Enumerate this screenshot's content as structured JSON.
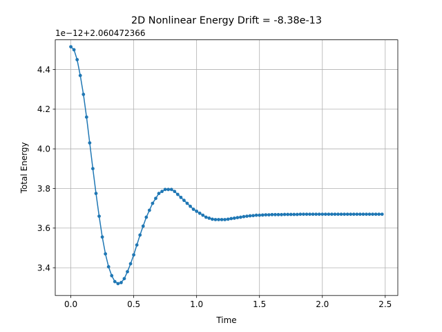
{
  "chart_data": {
    "type": "line",
    "title": "2D Nonlinear Energy Drift = -8.38e-13",
    "xlabel": "Time",
    "ylabel": "Total Energy",
    "offset_text": "1e−12+2.060472366",
    "xlim": [
      -0.124,
      2.6
    ],
    "ylim": [
      3.26,
      4.55
    ],
    "x_ticks": [
      0.0,
      0.5,
      1.0,
      1.5,
      2.0,
      2.5
    ],
    "x_tick_labels": [
      "0.0",
      "0.5",
      "1.0",
      "1.5",
      "2.0",
      "2.5"
    ],
    "y_ticks": [
      3.4,
      3.6,
      3.8,
      4.0,
      4.2,
      4.4
    ],
    "y_tick_labels": [
      "3.4",
      "3.6",
      "3.8",
      "4.0",
      "4.2",
      "4.4"
    ],
    "grid": true,
    "color": "#1f77b4",
    "marker": "circle",
    "series": [
      {
        "x": [
          0.0,
          0.025,
          0.05,
          0.075,
          0.1,
          0.125,
          0.15,
          0.175,
          0.2,
          0.225,
          0.25,
          0.275,
          0.3,
          0.325,
          0.35,
          0.375,
          0.4,
          0.425,
          0.45,
          0.475,
          0.5,
          0.525,
          0.55,
          0.575,
          0.6,
          0.625,
          0.65,
          0.675,
          0.7,
          0.725,
          0.75,
          0.775,
          0.8,
          0.825,
          0.85,
          0.875,
          0.9,
          0.925,
          0.95,
          0.975,
          1.0,
          1.025,
          1.05,
          1.075,
          1.1,
          1.125,
          1.15,
          1.175,
          1.2,
          1.225,
          1.25,
          1.275,
          1.3,
          1.325,
          1.35,
          1.375,
          1.4,
          1.425,
          1.45,
          1.475,
          1.5,
          1.525,
          1.55,
          1.575,
          1.6,
          1.625,
          1.65,
          1.675,
          1.7,
          1.725,
          1.75,
          1.775,
          1.8,
          1.825,
          1.85,
          1.875,
          1.9,
          1.925,
          1.95,
          1.975,
          2.0,
          2.025,
          2.05,
          2.075,
          2.1,
          2.125,
          2.15,
          2.175,
          2.2,
          2.225,
          2.25,
          2.275,
          2.3,
          2.325,
          2.35,
          2.375,
          2.4,
          2.425,
          2.45,
          2.475
        ],
        "y": [
          4.515,
          4.5,
          4.45,
          4.37,
          4.275,
          4.16,
          4.03,
          3.9,
          3.775,
          3.66,
          3.555,
          3.47,
          3.405,
          3.36,
          3.33,
          3.32,
          3.325,
          3.345,
          3.38,
          3.42,
          3.465,
          3.515,
          3.565,
          3.61,
          3.655,
          3.69,
          3.725,
          3.75,
          3.775,
          3.785,
          3.795,
          3.795,
          3.795,
          3.785,
          3.77,
          3.755,
          3.74,
          3.725,
          3.71,
          3.695,
          3.685,
          3.675,
          3.665,
          3.655,
          3.65,
          3.645,
          3.643,
          3.643,
          3.643,
          3.643,
          3.645,
          3.648,
          3.65,
          3.653,
          3.655,
          3.658,
          3.66,
          3.662,
          3.663,
          3.665,
          3.665,
          3.666,
          3.667,
          3.667,
          3.668,
          3.668,
          3.668,
          3.668,
          3.669,
          3.669,
          3.669,
          3.669,
          3.669,
          3.67,
          3.67,
          3.67,
          3.67,
          3.67,
          3.67,
          3.67,
          3.67,
          3.67,
          3.67,
          3.67,
          3.67,
          3.67,
          3.67,
          3.67,
          3.67,
          3.67,
          3.67,
          3.67,
          3.67,
          3.67,
          3.67,
          3.67,
          3.67,
          3.67,
          3.67,
          3.67
        ]
      }
    ]
  }
}
